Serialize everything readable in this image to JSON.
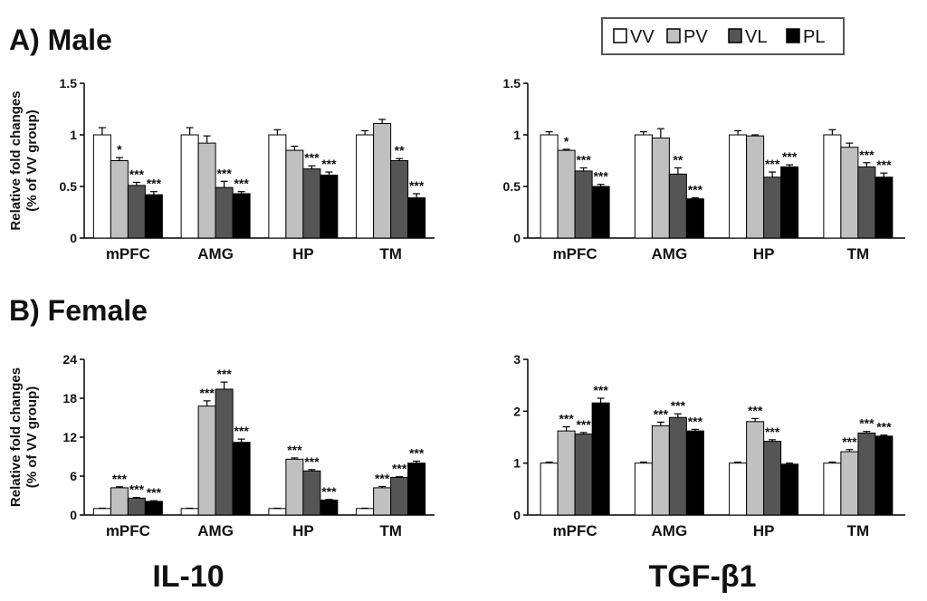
{
  "panels": {
    "male_title": "A) Male",
    "female_title": "B) Female"
  },
  "markers": {
    "left": "IL-10",
    "right": "TGF-β1"
  },
  "ylabel_line1": "Relative fold changes",
  "ylabel_line2": "(% of VV group)",
  "legend": [
    {
      "name": "VV",
      "color": "#ffffff"
    },
    {
      "name": "PV",
      "color": "#c0c0c0"
    },
    {
      "name": "VL",
      "color": "#555555"
    },
    {
      "name": "PL",
      "color": "#000000"
    }
  ],
  "chart_data": [
    {
      "type": "bar",
      "panel": "Male",
      "marker": "IL-10",
      "categories": [
        "mPFC",
        "AMG",
        "HP",
        "TM"
      ],
      "ylim": [
        0,
        1.5
      ],
      "yticks": [
        "0",
        "0.5",
        "1",
        "1.5"
      ],
      "series": [
        {
          "name": "VV",
          "values": [
            1.0,
            1.0,
            1.0,
            1.0
          ],
          "errors": [
            0.07,
            0.07,
            0.05,
            0.04
          ],
          "sig": [
            "",
            "",
            "",
            ""
          ]
        },
        {
          "name": "PV",
          "values": [
            0.75,
            0.92,
            0.85,
            1.11
          ],
          "errors": [
            0.03,
            0.07,
            0.04,
            0.04
          ],
          "sig": [
            "*",
            "",
            "",
            ""
          ]
        },
        {
          "name": "VL",
          "values": [
            0.51,
            0.49,
            0.67,
            0.75
          ],
          "errors": [
            0.03,
            0.06,
            0.03,
            0.02
          ],
          "sig": [
            "***",
            "***",
            "***",
            "**"
          ]
        },
        {
          "name": "PL",
          "values": [
            0.42,
            0.43,
            0.61,
            0.39
          ],
          "errors": [
            0.03,
            0.02,
            0.03,
            0.04
          ],
          "sig": [
            "***",
            "***",
            "***",
            "***"
          ]
        }
      ]
    },
    {
      "type": "bar",
      "panel": "Male",
      "marker": "TGF-β1",
      "categories": [
        "mPFC",
        "AMG",
        "HP",
        "TM"
      ],
      "ylim": [
        0,
        1.5
      ],
      "yticks": [
        "0",
        "0.5",
        "1",
        "1.5"
      ],
      "series": [
        {
          "name": "VV",
          "values": [
            1.0,
            1.0,
            1.0,
            1.0
          ],
          "errors": [
            0.03,
            0.03,
            0.04,
            0.05
          ],
          "sig": [
            "",
            "",
            "",
            ""
          ]
        },
        {
          "name": "PV",
          "values": [
            0.85,
            0.97,
            0.99,
            0.88
          ],
          "errors": [
            0.01,
            0.09,
            0.01,
            0.04
          ],
          "sig": [
            "*",
            "",
            "",
            ""
          ]
        },
        {
          "name": "VL",
          "values": [
            0.65,
            0.62,
            0.59,
            0.69
          ],
          "errors": [
            0.03,
            0.06,
            0.05,
            0.04
          ],
          "sig": [
            "***",
            "**",
            "***",
            "***"
          ]
        },
        {
          "name": "PL",
          "values": [
            0.5,
            0.38,
            0.69,
            0.59
          ],
          "errors": [
            0.02,
            0.01,
            0.02,
            0.04
          ],
          "sig": [
            "***",
            "***",
            "***",
            "***"
          ]
        }
      ]
    },
    {
      "type": "bar",
      "panel": "Female",
      "marker": "IL-10",
      "categories": [
        "mPFC",
        "AMG",
        "HP",
        "TM"
      ],
      "ylim": [
        0,
        24
      ],
      "yticks": [
        "0",
        "6",
        "12",
        "18",
        "24"
      ],
      "series": [
        {
          "name": "VV",
          "values": [
            1.0,
            1.0,
            1.0,
            1.0
          ],
          "errors": [
            0.05,
            0.05,
            0.05,
            0.05
          ],
          "sig": [
            "",
            "",
            "",
            ""
          ]
        },
        {
          "name": "PV",
          "values": [
            4.2,
            16.8,
            8.6,
            4.2
          ],
          "errors": [
            0.15,
            0.8,
            0.2,
            0.2
          ],
          "sig": [
            "***",
            "***",
            "***",
            "***"
          ]
        },
        {
          "name": "VL",
          "values": [
            2.6,
            19.4,
            6.8,
            5.8
          ],
          "errors": [
            0.1,
            1.1,
            0.2,
            0.1
          ],
          "sig": [
            "***",
            "***",
            "***",
            "***"
          ]
        },
        {
          "name": "PL",
          "values": [
            2.1,
            11.2,
            2.3,
            8.0
          ],
          "errors": [
            0.1,
            0.5,
            0.1,
            0.3
          ],
          "sig": [
            "***",
            "***",
            "***",
            "***"
          ]
        }
      ]
    },
    {
      "type": "bar",
      "panel": "Female",
      "marker": "TGF-β1",
      "categories": [
        "mPFC",
        "AMG",
        "HP",
        "TM"
      ],
      "ylim": [
        0,
        3
      ],
      "yticks": [
        "0",
        "1",
        "2",
        "3"
      ],
      "series": [
        {
          "name": "VV",
          "values": [
            1.0,
            1.0,
            1.0,
            1.0
          ],
          "errors": [
            0.02,
            0.02,
            0.02,
            0.02
          ],
          "sig": [
            "",
            "",
            "",
            ""
          ]
        },
        {
          "name": "PV",
          "values": [
            1.62,
            1.72,
            1.8,
            1.22
          ],
          "errors": [
            0.08,
            0.07,
            0.06,
            0.04
          ],
          "sig": [
            "***",
            "***",
            "***",
            "***"
          ]
        },
        {
          "name": "VL",
          "values": [
            1.56,
            1.88,
            1.42,
            1.58
          ],
          "errors": [
            0.03,
            0.07,
            0.03,
            0.03
          ],
          "sig": [
            "***",
            "***",
            "***",
            "***"
          ]
        },
        {
          "name": "PL",
          "values": [
            2.16,
            1.62,
            0.98,
            1.52
          ],
          "errors": [
            0.09,
            0.03,
            0.02,
            0.02
          ],
          "sig": [
            "***",
            "***",
            "",
            "***"
          ]
        }
      ]
    }
  ]
}
